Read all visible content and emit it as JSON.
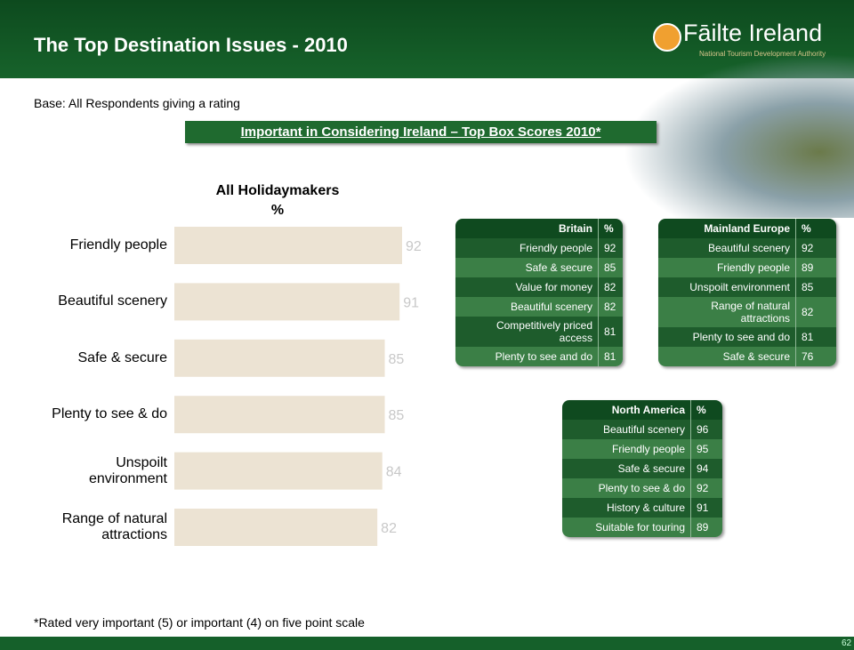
{
  "header": {
    "title": "The Top Destination Issues - 2010",
    "logo": "Fāilte Ireland",
    "logo_subtitle": "National Tourism Development Authority"
  },
  "base": "Base: All Respondents giving a rating",
  "section_title": "Important in Considering Ireland – Top Box Scores 2010*",
  "chart_data": {
    "type": "bar",
    "orientation": "horizontal",
    "title": "All Holidaymakers",
    "subtitle": "%",
    "categories": [
      "Friendly people",
      "Beautiful scenery",
      "Safe & secure",
      "Plenty to see & do",
      "Unspoilt environment",
      "Range of natural attractions"
    ],
    "values": [
      92,
      91,
      85,
      85,
      84,
      82
    ],
    "color": "#ece3d3",
    "value_label_color": "#c8c8c8"
  },
  "tables": [
    {
      "title": "Britain",
      "unit": "%",
      "rows": [
        [
          "Friendly people",
          92
        ],
        [
          "Safe & secure",
          85
        ],
        [
          "Value for money",
          82
        ],
        [
          "Beautiful scenery",
          82
        ],
        [
          "Competitively priced access",
          81
        ],
        [
          "Plenty to see and do",
          81
        ]
      ]
    },
    {
      "title": "Mainland Europe",
      "unit": "%",
      "rows": [
        [
          "Beautiful scenery",
          92
        ],
        [
          "Friendly people",
          89
        ],
        [
          "Unspoilt environment",
          85
        ],
        [
          "Range of natural attractions",
          82
        ],
        [
          "Plenty to see and do",
          81
        ],
        [
          "Safe & secure",
          76
        ]
      ]
    },
    {
      "title": "North America",
      "unit": "%",
      "rows": [
        [
          "Beautiful scenery",
          96
        ],
        [
          "Friendly people",
          95
        ],
        [
          "Safe & secure",
          94
        ],
        [
          "Plenty to see & do",
          92
        ],
        [
          "History & culture",
          91
        ],
        [
          "Suitable for touring",
          89
        ]
      ]
    }
  ],
  "footnote": "*Rated very important (5) or important (4) on five point scale",
  "page_number": "62"
}
